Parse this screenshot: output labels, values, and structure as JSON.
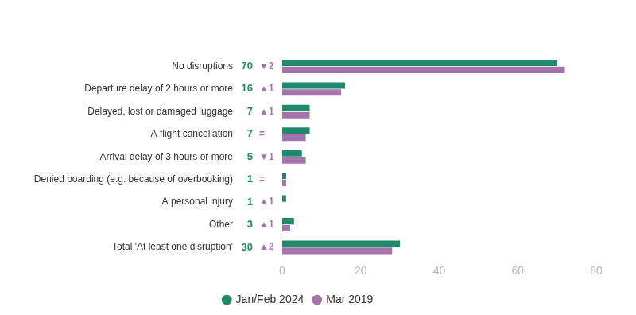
{
  "chart_data": {
    "type": "bar",
    "orientation": "horizontal",
    "categories": [
      "No disruptions",
      "Departure delay of 2 hours or more",
      "Delayed, lost or damaged luggage",
      "A flight cancellation",
      "Arrival delay of 3 hours or more",
      "Denied boarding (e.g. because of overbooking)",
      "A personal injury",
      "Other",
      "Total 'At least one disruption'"
    ],
    "series": [
      {
        "name": "Jan/Feb 2024",
        "color": "#1e8a6b",
        "values": [
          70,
          16,
          7,
          7,
          5,
          1,
          1,
          3,
          30
        ],
        "data_labels": true
      },
      {
        "name": "Mar 2019",
        "color": "#a673ad",
        "values": [
          72,
          15,
          7,
          6,
          6,
          1,
          0,
          2,
          28
        ]
      }
    ],
    "changes": [
      "▼2",
      "▲1",
      "▲1",
      "=",
      "▼1",
      "=",
      "▲1",
      "▲1",
      "▲2"
    ],
    "xlim": [
      0,
      80
    ],
    "xticks": [
      0,
      20,
      40,
      60,
      80
    ],
    "grid": false,
    "legend": "bottom"
  }
}
